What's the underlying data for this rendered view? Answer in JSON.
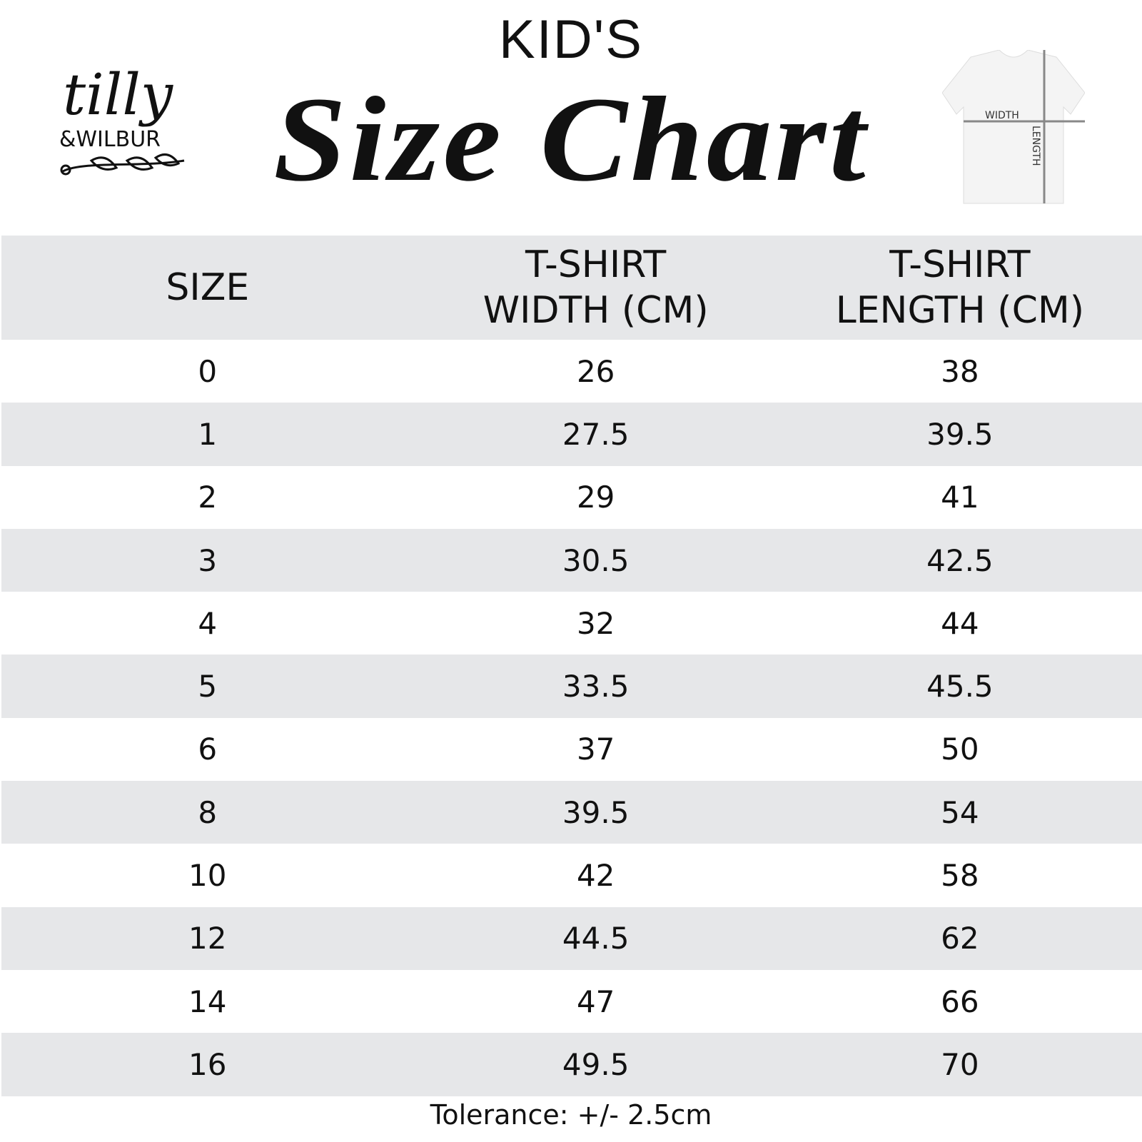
{
  "brand": {
    "logo_text": "tilly & WILBUR"
  },
  "header": {
    "subtitle": "KID'S",
    "title": "Size Chart"
  },
  "diagram": {
    "width_label": "WIDTH",
    "length_label": "LENGTH"
  },
  "table": {
    "columns": [
      {
        "line1": "",
        "line2": "SIZE"
      },
      {
        "line1": "T-SHIRT",
        "line2": "WIDTH (CM)"
      },
      {
        "line1": "T-SHIRT",
        "line2": "LENGTH (CM)"
      }
    ],
    "rows": [
      [
        "0",
        "26",
        "38"
      ],
      [
        "1",
        "27.5",
        "39.5"
      ],
      [
        "2",
        "29",
        "41"
      ],
      [
        "3",
        "30.5",
        "42.5"
      ],
      [
        "4",
        "32",
        "44"
      ],
      [
        "5",
        "33.5",
        "45.5"
      ],
      [
        "6",
        "37",
        "50"
      ],
      [
        "8",
        "39.5",
        "54"
      ],
      [
        "10",
        "42",
        "58"
      ],
      [
        "12",
        "44.5",
        "62"
      ],
      [
        "14",
        "47",
        "66"
      ],
      [
        "16",
        "49.5",
        "70"
      ]
    ]
  },
  "footer": {
    "tolerance": "Tolerance: +/- 2.5cm"
  },
  "colors": {
    "band": "#e6e7e9",
    "text": "#111111"
  }
}
